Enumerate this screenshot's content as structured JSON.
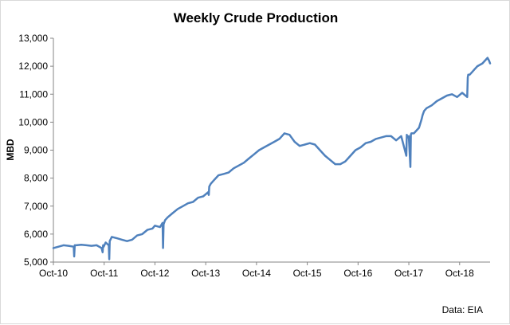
{
  "chart_data": {
    "type": "line",
    "title": "Weekly Crude Production",
    "xlabel": "",
    "ylabel": "MBD",
    "ylim": [
      5000,
      13000
    ],
    "yticks": [
      "5,000",
      "6,000",
      "7,000",
      "8,000",
      "9,000",
      "10,000",
      "11,000",
      "12,000",
      "13,000"
    ],
    "xticks": [
      "Oct-10",
      "Oct-11",
      "Oct-12",
      "Oct-13",
      "Oct-14",
      "Oct-15",
      "Oct-16",
      "Oct-17",
      "Oct-18"
    ],
    "xlim_years": [
      2010.75,
      2019.35
    ],
    "grid": false,
    "legend": "none",
    "source_note": "Data: EIA",
    "line_color": "#4f81bd",
    "series": [
      {
        "x": [
          2010.75,
          2010.85,
          2010.95,
          2011.05,
          2011.15,
          2011.16,
          2011.17,
          2011.2,
          2011.3,
          2011.4,
          2011.5,
          2011.6,
          2011.7,
          2011.72,
          2011.73,
          2011.74,
          2011.78,
          2011.84,
          2011.85,
          2011.86,
          2011.9,
          2012.0,
          2012.1,
          2012.2,
          2012.3,
          2012.4,
          2012.5,
          2012.6,
          2012.7,
          2012.75,
          2012.85,
          2012.9,
          2012.91,
          2012.92,
          2012.95,
          2013.0,
          2013.1,
          2013.2,
          2013.3,
          2013.4,
          2013.5,
          2013.6,
          2013.7,
          2013.8,
          2013.81,
          2013.82,
          2013.85,
          2013.9,
          2014.0,
          2014.1,
          2014.2,
          2014.3,
          2014.4,
          2014.5,
          2014.6,
          2014.7,
          2014.8,
          2014.9,
          2015.0,
          2015.1,
          2015.2,
          2015.3,
          2015.4,
          2015.5,
          2015.6,
          2015.7,
          2015.8,
          2015.9,
          2016.0,
          2016.1,
          2016.2,
          2016.3,
          2016.4,
          2016.5,
          2016.6,
          2016.7,
          2016.8,
          2016.9,
          2017.0,
          2017.1,
          2017.2,
          2017.3,
          2017.4,
          2017.5,
          2017.6,
          2017.7,
          2017.71,
          2017.72,
          2017.75,
          2017.78,
          2017.79,
          2017.8,
          2017.85,
          2017.95,
          2018.0,
          2018.02,
          2018.05,
          2018.1,
          2018.2,
          2018.3,
          2018.4,
          2018.5,
          2018.6,
          2018.7,
          2018.8,
          2018.9,
          2018.91,
          2018.92,
          2018.95,
          2019.0,
          2019.05,
          2019.1,
          2019.2,
          2019.3,
          2019.33,
          2019.35
        ],
        "y": [
          5500,
          5550,
          5600,
          5580,
          5550,
          5200,
          5600,
          5600,
          5620,
          5600,
          5580,
          5600,
          5500,
          5350,
          5600,
          5550,
          5700,
          5600,
          5100,
          5750,
          5900,
          5850,
          5800,
          5750,
          5800,
          5950,
          6000,
          6150,
          6200,
          6300,
          6250,
          6400,
          5500,
          6350,
          6500,
          6600,
          6750,
          6900,
          7000,
          7100,
          7150,
          7300,
          7350,
          7500,
          7400,
          7700,
          7800,
          7900,
          8100,
          8150,
          8200,
          8350,
          8450,
          8550,
          8700,
          8850,
          9000,
          9100,
          9200,
          9300,
          9400,
          9600,
          9550,
          9300,
          9150,
          9200,
          9250,
          9200,
          9000,
          8800,
          8650,
          8500,
          8500,
          8600,
          8800,
          9000,
          9100,
          9250,
          9300,
          9400,
          9450,
          9500,
          9500,
          9350,
          9500,
          8800,
          9550,
          9450,
          9500,
          8400,
          9550,
          9600,
          9600,
          9800,
          10100,
          10250,
          10400,
          10500,
          10600,
          10750,
          10850,
          10950,
          11000,
          10900,
          11050,
          10900,
          11600,
          11700,
          11700,
          11800,
          11900,
          12000,
          12100,
          12300,
          12200,
          12100
        ]
      }
    ]
  }
}
